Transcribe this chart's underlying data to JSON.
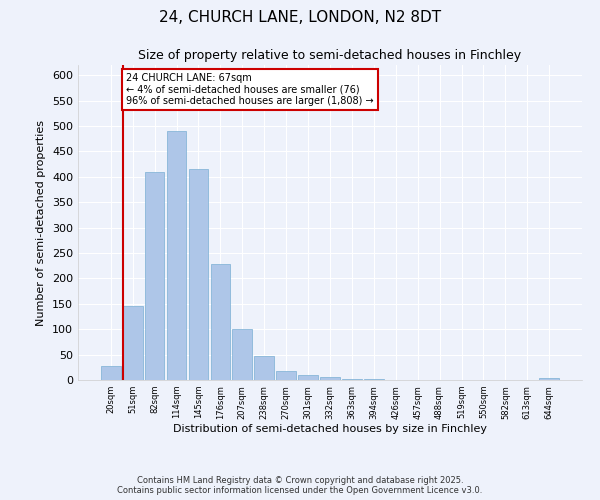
{
  "title1": "24, CHURCH LANE, LONDON, N2 8DT",
  "title2": "Size of property relative to semi-detached houses in Finchley",
  "xlabel": "Distribution of semi-detached houses by size in Finchley",
  "ylabel": "Number of semi-detached properties",
  "categories": [
    "20sqm",
    "51sqm",
    "82sqm",
    "114sqm",
    "145sqm",
    "176sqm",
    "207sqm",
    "238sqm",
    "270sqm",
    "301sqm",
    "332sqm",
    "363sqm",
    "394sqm",
    "426sqm",
    "457sqm",
    "488sqm",
    "519sqm",
    "550sqm",
    "582sqm",
    "613sqm",
    "644sqm"
  ],
  "values": [
    27,
    145,
    410,
    490,
    415,
    228,
    100,
    47,
    18,
    10,
    5,
    2,
    1,
    0,
    0,
    0,
    0,
    0,
    0,
    0,
    4
  ],
  "bar_color": "#aec6e8",
  "bar_edge_color": "#7aafd4",
  "vline_x_idx": 1,
  "vline_color": "#cc0000",
  "annotation_text": "24 CHURCH LANE: 67sqm\n← 4% of semi-detached houses are smaller (76)\n96% of semi-detached houses are larger (1,808) →",
  "annotation_box_color": "#ffffff",
  "annotation_box_edge": "#cc0000",
  "ylim": [
    0,
    620
  ],
  "yticks": [
    0,
    50,
    100,
    150,
    200,
    250,
    300,
    350,
    400,
    450,
    500,
    550,
    600
  ],
  "background_color": "#eef2fb",
  "grid_color": "#ffffff",
  "footer1": "Contains HM Land Registry data © Crown copyright and database right 2025.",
  "footer2": "Contains public sector information licensed under the Open Government Licence v3.0."
}
